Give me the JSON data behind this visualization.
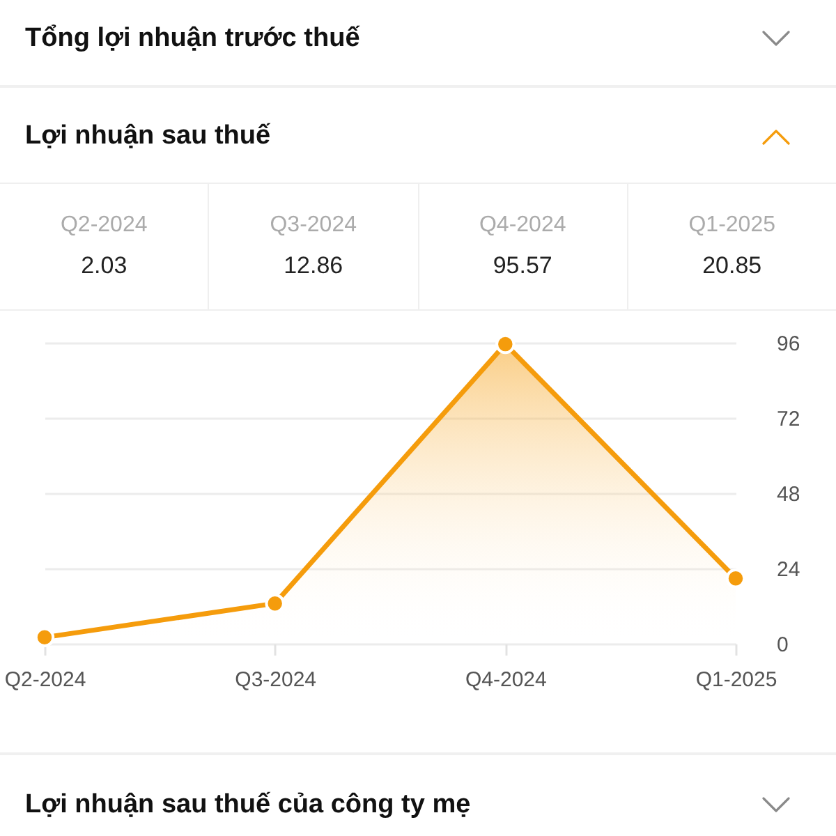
{
  "chart_data": {
    "type": "area",
    "title": "Lợi nhuận sau thuế",
    "annotations": [
      "Tổng lợi nhuận trước thuế",
      "Lợi nhuận sau thuế của công ty mẹ"
    ],
    "categories": [
      "Q2-2024",
      "Q3-2024",
      "Q4-2024",
      "Q1-2025"
    ],
    "series": [
      {
        "color": "#f59c0c",
        "values": [
          2.03,
          12.86,
          95.57,
          20.85
        ]
      }
    ],
    "ylim": [
      0,
      96
    ],
    "yticks": [
      0,
      24,
      48,
      72,
      96
    ],
    "grid": "y",
    "marker": "circle",
    "line_style": "solid",
    "data_labels": true
  }
}
